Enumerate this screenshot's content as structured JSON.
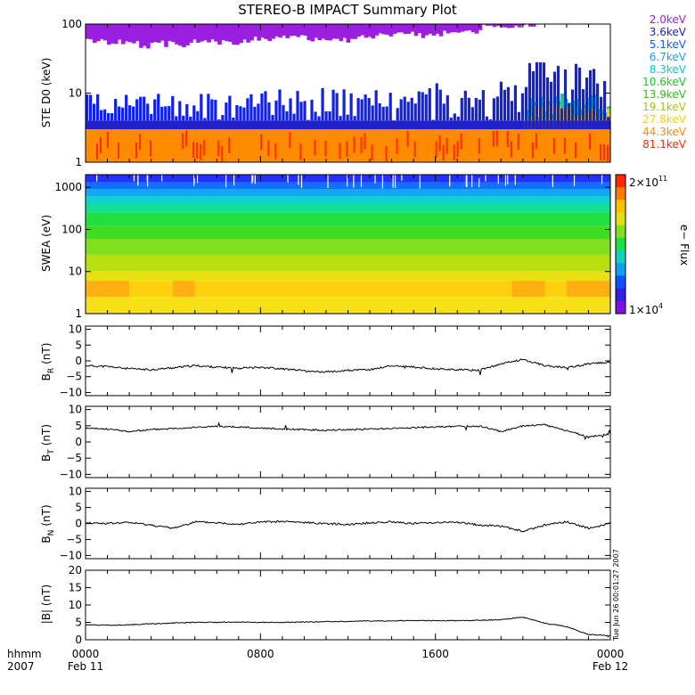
{
  "title": "STEREO-B IMPACT Summary Plot",
  "time_axis": {
    "labels": [
      {
        "top": "0000",
        "bottom": "Feb 11",
        "hour": 0
      },
      {
        "top": "0800",
        "bottom": "",
        "hour": 8
      },
      {
        "top": "1600",
        "bottom": "",
        "hour": 16
      },
      {
        "top": "0000",
        "bottom": "Feb 12",
        "hour": 24
      }
    ],
    "left_top": "hhmm",
    "left_bottom": "2007",
    "range_hours": [
      0,
      24
    ]
  },
  "stamp": "Tue Jun 26 00:01:27 2007",
  "chart_data": [
    {
      "type": "line",
      "panel": "ste",
      "ylabel": "STE D0 (keV)",
      "yscale": "log",
      "ylim": [
        1,
        100
      ],
      "yticks": [
        "1",
        "10",
        "100"
      ],
      "yticks_values": [
        1,
        10,
        100
      ],
      "legend_position": "right",
      "series": [
        {
          "name": "2.0keV",
          "color": "#9a1fe0",
          "values_level": [
            62,
            60,
            58,
            58,
            60,
            64,
            62,
            66,
            70,
            72,
            68,
            66,
            70,
            74,
            78,
            76,
            80,
            84,
            100,
            100,
            100,
            100,
            100,
            100,
            100
          ]
        },
        {
          "name": "3.6keV",
          "color": "#2020c8",
          "values_level": [
            4,
            4,
            4,
            4,
            4,
            4,
            4,
            4,
            4,
            4,
            4,
            4,
            4,
            4,
            4,
            4,
            4,
            4,
            4,
            4,
            4,
            4,
            4,
            4,
            4
          ]
        },
        {
          "name": "5.1keV",
          "color": "#1060ff"
        },
        {
          "name": "6.7keV",
          "color": "#1aa0f0"
        },
        {
          "name": "8.3keV",
          "color": "#10c8c8"
        },
        {
          "name": "10.6keV",
          "color": "#10d020"
        },
        {
          "name": "13.9keV",
          "color": "#30c010"
        },
        {
          "name": "19.1keV",
          "color": "#a0c810"
        },
        {
          "name": "27.8keV",
          "color": "#f0d010"
        },
        {
          "name": "44.3keV",
          "color": "#ff8c00"
        },
        {
          "name": "81.1keV",
          "color": "#ff2a00"
        }
      ]
    },
    {
      "type": "heatmap",
      "panel": "swea",
      "ylabel": "SWEA (eV)",
      "yscale": "log",
      "ylim": [
        1,
        2000
      ],
      "yticks": [
        "1",
        "10",
        "100",
        "1000"
      ],
      "yticks_values": [
        1,
        10,
        100,
        1000
      ],
      "colorbar": {
        "label": "e− Flux",
        "max_label": "2×10",
        "max_exp": "11",
        "min_label": "1×10",
        "min_exp": "4",
        "scale": "log",
        "range": [
          10000,
          200000000000
        ]
      }
    },
    {
      "type": "line",
      "panel": "br",
      "ylabel": "B",
      "ylabel_sub": "R",
      "ylabel_unit": "(nT)",
      "ylim": [
        -11,
        11
      ],
      "yticks": [
        "10",
        "5",
        "0",
        "−5",
        "−10"
      ],
      "yticks_values": [
        10,
        5,
        0,
        -5,
        -10
      ],
      "x_hours": [
        0,
        1,
        2,
        3,
        4,
        5,
        6,
        7,
        8,
        9,
        10,
        11,
        12,
        13,
        14,
        15,
        16,
        17,
        18,
        19,
        20,
        21,
        22,
        23,
        24
      ],
      "values": [
        -1.5,
        -1.8,
        -2.5,
        -2.8,
        -2.2,
        -1.5,
        -2.0,
        -2.3,
        -2.0,
        -2.5,
        -3.2,
        -3.5,
        -3.0,
        -2.8,
        -1.5,
        -2.0,
        -2.5,
        -2.8,
        -3.0,
        -1.0,
        0.5,
        -1.5,
        -2.2,
        -1.0,
        -0.3
      ]
    },
    {
      "type": "line",
      "panel": "bt",
      "ylabel": "B",
      "ylabel_sub": "T",
      "ylabel_unit": "(nT)",
      "ylim": [
        -11,
        11
      ],
      "yticks": [
        "10",
        "5",
        "0",
        "−5",
        "−10"
      ],
      "yticks_values": [
        10,
        5,
        0,
        -5,
        -10
      ],
      "x_hours": [
        0,
        1,
        2,
        3,
        4,
        5,
        6,
        7,
        8,
        9,
        10,
        11,
        12,
        13,
        14,
        15,
        16,
        17,
        18,
        19,
        20,
        21,
        22,
        23,
        24
      ],
      "values": [
        4.2,
        4.0,
        3.2,
        3.8,
        4.2,
        4.5,
        4.8,
        4.6,
        4.3,
        4.0,
        3.8,
        3.6,
        3.8,
        4.0,
        4.2,
        4.4,
        4.6,
        4.8,
        4.9,
        3.2,
        5.0,
        5.3,
        3.5,
        1.5,
        2.5
      ]
    },
    {
      "type": "line",
      "panel": "bn",
      "ylabel": "B",
      "ylabel_sub": "N",
      "ylabel_unit": "(nT)",
      "ylim": [
        -11,
        11
      ],
      "yticks": [
        "10",
        "5",
        "0",
        "−5",
        "−10"
      ],
      "yticks_values": [
        10,
        5,
        0,
        -5,
        -10
      ],
      "x_hours": [
        0,
        1,
        2,
        3,
        4,
        5,
        6,
        7,
        8,
        9,
        10,
        11,
        12,
        13,
        14,
        15,
        16,
        17,
        18,
        19,
        20,
        21,
        22,
        23,
        24
      ],
      "values": [
        0.2,
        0.0,
        0.3,
        -0.5,
        -1.5,
        0.5,
        0.2,
        -0.2,
        0.4,
        0.6,
        0.3,
        0.0,
        -0.3,
        0.2,
        0.5,
        0.0,
        0.3,
        0.4,
        -0.5,
        -0.8,
        -2.5,
        -0.5,
        0.5,
        -1.5,
        0.0
      ]
    },
    {
      "type": "line",
      "panel": "bmag",
      "ylabel": "|B| (nT)",
      "ylim": [
        0,
        20
      ],
      "yticks": [
        "20",
        "15",
        "10",
        "5",
        "0"
      ],
      "yticks_values": [
        20,
        15,
        10,
        5,
        0
      ],
      "x_hours": [
        0,
        1,
        2,
        3,
        4,
        5,
        6,
        7,
        8,
        9,
        10,
        11,
        12,
        13,
        14,
        15,
        16,
        17,
        18,
        19,
        20,
        21,
        22,
        23,
        24
      ],
      "values": [
        4.3,
        4.2,
        4.3,
        4.6,
        4.8,
        5.0,
        5.0,
        5.1,
        5.0,
        5.0,
        5.1,
        5.2,
        5.3,
        5.4,
        5.4,
        5.5,
        5.5,
        5.5,
        5.6,
        5.8,
        6.5,
        4.8,
        3.8,
        1.5,
        1.2
      ]
    }
  ]
}
